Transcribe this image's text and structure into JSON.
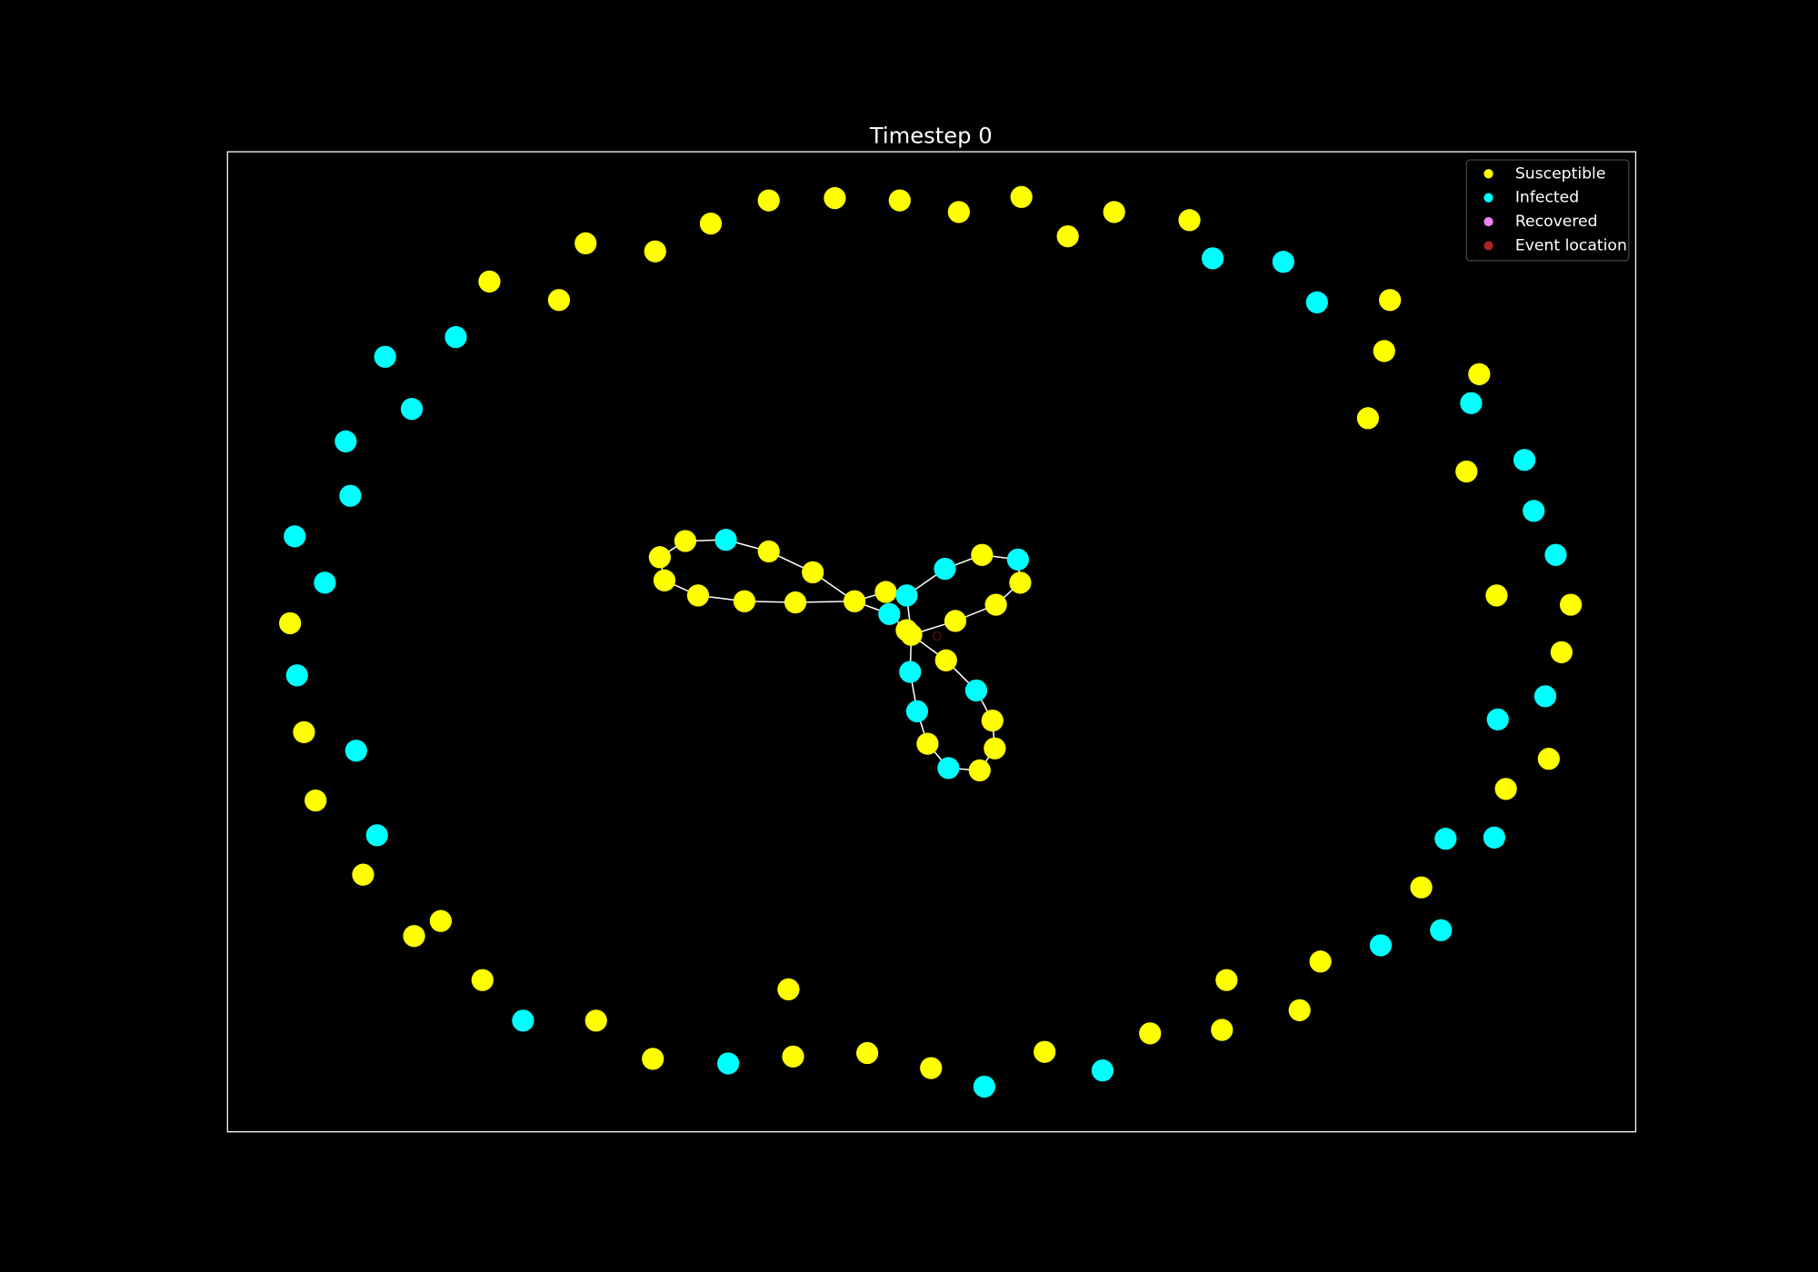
{
  "chart_data": {
    "type": "network",
    "title": "Timestep 0",
    "legend": "upper right",
    "series": [
      {
        "name": "Susceptible",
        "color": "#ffff00"
      },
      {
        "name": "Infected",
        "color": "#00ffff"
      },
      {
        "name": "Recovered",
        "color": "#ee82ee"
      },
      {
        "name": "Event location",
        "color": "#b22222"
      }
    ]
  }
}
